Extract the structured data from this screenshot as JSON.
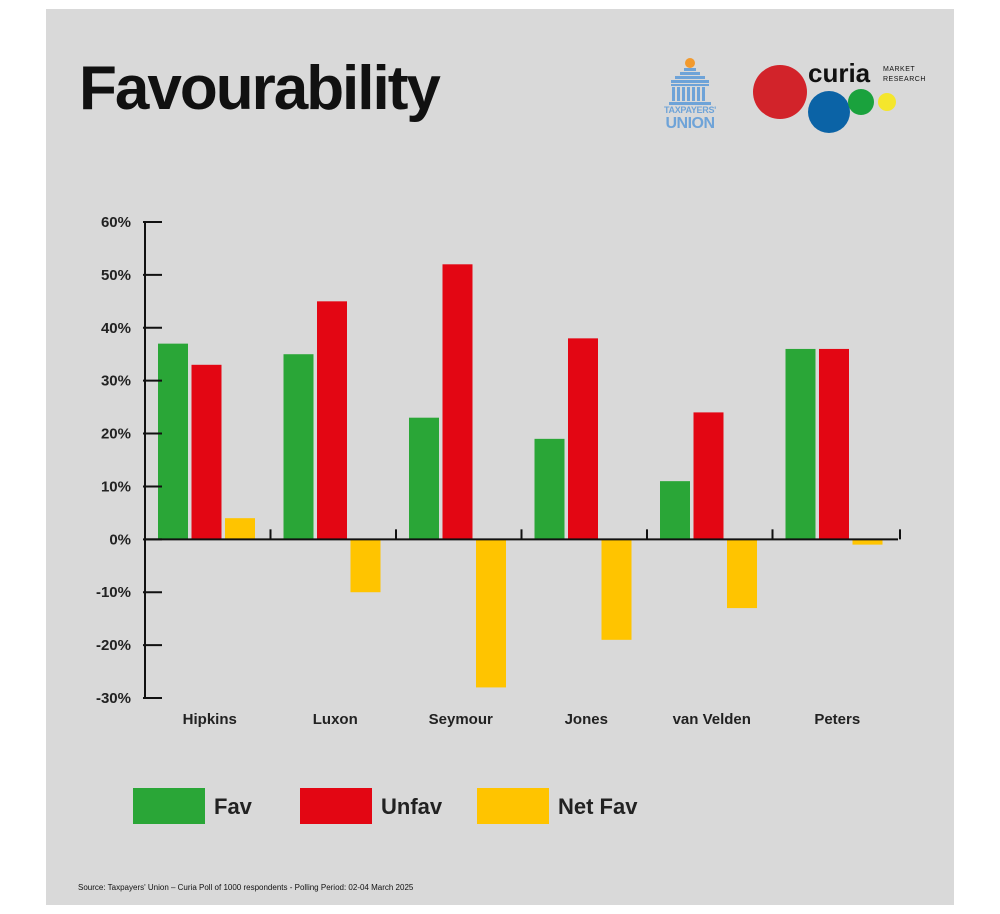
{
  "title": "Favourability",
  "logos": {
    "taxpayers_union_top": "TAXPAYERS'",
    "taxpayers_union_bottom": "UNION",
    "curia_name": "curia",
    "curia_sub1": "MARKET",
    "curia_sub2": "RESEARCH"
  },
  "colors": {
    "background": "#d9d9d9",
    "fav": "#2aa637",
    "unfav": "#e30613",
    "net_fav": "#ffc400",
    "axis": "#111111"
  },
  "chart_data": {
    "type": "bar",
    "categories": [
      "Hipkins",
      "Luxon",
      "Seymour",
      "Jones",
      "van Velden",
      "Peters"
    ],
    "series": [
      {
        "name": "Fav",
        "values": [
          37,
          35,
          23,
          19,
          11,
          36
        ]
      },
      {
        "name": "Unfav",
        "values": [
          33,
          45,
          52,
          38,
          24,
          36
        ]
      },
      {
        "name": "Net Fav",
        "values": [
          4,
          -10,
          -28,
          -19,
          -13,
          -1
        ]
      }
    ],
    "ylim": [
      -30,
      60
    ],
    "yticks": [
      60,
      50,
      40,
      30,
      20,
      10,
      0,
      -10,
      -20,
      -30
    ],
    "ytick_labels": [
      "60%",
      "50%",
      "40%",
      "30%",
      "20%",
      "10%",
      "0%",
      "-10%",
      "-20%",
      "-30%"
    ],
    "xlabel": "",
    "ylabel": "",
    "grid": false,
    "legend_position": "bottom-left"
  },
  "legend": [
    {
      "label": "Fav",
      "color": "#2aa637"
    },
    {
      "label": "Unfav",
      "color": "#e30613"
    },
    {
      "label": "Net Fav",
      "color": "#ffc400"
    }
  ],
  "source": "Source: Taxpayers' Union – Curia Poll of 1000 respondents -  Polling Period: 02-04 March 2025"
}
